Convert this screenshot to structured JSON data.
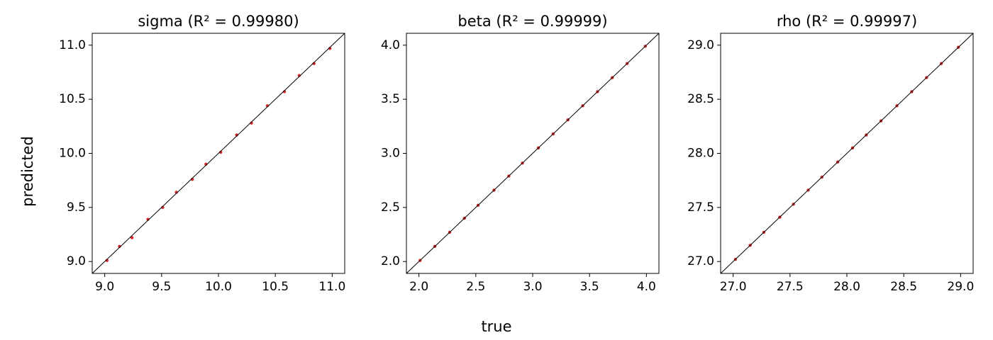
{
  "x_label": "true",
  "y_label": "predicted",
  "chart_data": [
    {
      "type": "scatter",
      "title": "sigma (R² = 0.99980)",
      "color": "#d62728",
      "x": [
        9.02,
        9.13,
        9.24,
        9.38,
        9.51,
        9.63,
        9.77,
        9.89,
        10.02,
        10.16,
        10.29,
        10.43,
        10.58,
        10.71,
        10.84,
        10.98
      ],
      "y": [
        9.01,
        9.14,
        9.22,
        9.39,
        9.5,
        9.64,
        9.76,
        9.9,
        10.01,
        10.17,
        10.28,
        10.44,
        10.57,
        10.72,
        10.83,
        10.97
      ],
      "xlim": [
        8.89,
        11.11
      ],
      "ylim": [
        8.89,
        11.11
      ],
      "xticks": [
        {
          "value": 9,
          "label": "9.0"
        },
        9.5,
        {
          "value": 10,
          "label": "10.0"
        },
        10.5,
        {
          "value": 11,
          "label": "11.0"
        }
      ],
      "yticks": [
        {
          "value": 9,
          "label": "9.0"
        },
        9.5,
        {
          "value": 10,
          "label": "10.0"
        },
        10.5,
        {
          "value": 11,
          "label": "11.0"
        }
      ]
    },
    {
      "type": "scatter",
      "title": "beta (R² = 0.99999)",
      "color": "#d62728",
      "x": [
        2.01,
        2.14,
        2.27,
        2.4,
        2.52,
        2.66,
        2.79,
        2.91,
        3.05,
        3.18,
        3.31,
        3.44,
        3.57,
        3.7,
        3.83,
        3.99
      ],
      "y": [
        2.01,
        2.14,
        2.27,
        2.4,
        2.52,
        2.66,
        2.79,
        2.91,
        3.05,
        3.18,
        3.31,
        3.44,
        3.57,
        3.7,
        3.83,
        3.99
      ],
      "xlim": [
        1.89,
        4.11
      ],
      "ylim": [
        1.89,
        4.11
      ],
      "xticks": [
        {
          "value": 2,
          "label": "2.0"
        },
        2.5,
        {
          "value": 3,
          "label": "3.0"
        },
        3.5,
        {
          "value": 4,
          "label": "4.0"
        }
      ],
      "yticks": [
        {
          "value": 2,
          "label": "2.0"
        },
        2.5,
        {
          "value": 3,
          "label": "3.0"
        },
        3.5,
        {
          "value": 4,
          "label": "4.0"
        }
      ]
    },
    {
      "type": "scatter",
      "title": "rho (R² = 0.99997)",
      "color": "#d62728",
      "x": [
        27.02,
        27.15,
        27.27,
        27.41,
        27.53,
        27.66,
        27.78,
        27.92,
        28.05,
        28.17,
        28.3,
        28.44,
        28.57,
        28.7,
        28.83,
        28.98
      ],
      "y": [
        27.02,
        27.15,
        27.27,
        27.41,
        27.53,
        27.66,
        27.78,
        27.92,
        28.05,
        28.17,
        28.3,
        28.44,
        28.57,
        28.7,
        28.83,
        28.98
      ],
      "xlim": [
        26.89,
        29.11
      ],
      "ylim": [
        26.89,
        29.11
      ],
      "xticks": [
        {
          "value": 27,
          "label": "27.0"
        },
        27.5,
        {
          "value": 28,
          "label": "28.0"
        },
        28.5,
        {
          "value": 29,
          "label": "29.0"
        }
      ],
      "yticks": [
        {
          "value": 27,
          "label": "27.0"
        },
        27.5,
        {
          "value": 28,
          "label": "28.0"
        },
        28.5,
        {
          "value": 29,
          "label": "29.0"
        }
      ]
    }
  ]
}
